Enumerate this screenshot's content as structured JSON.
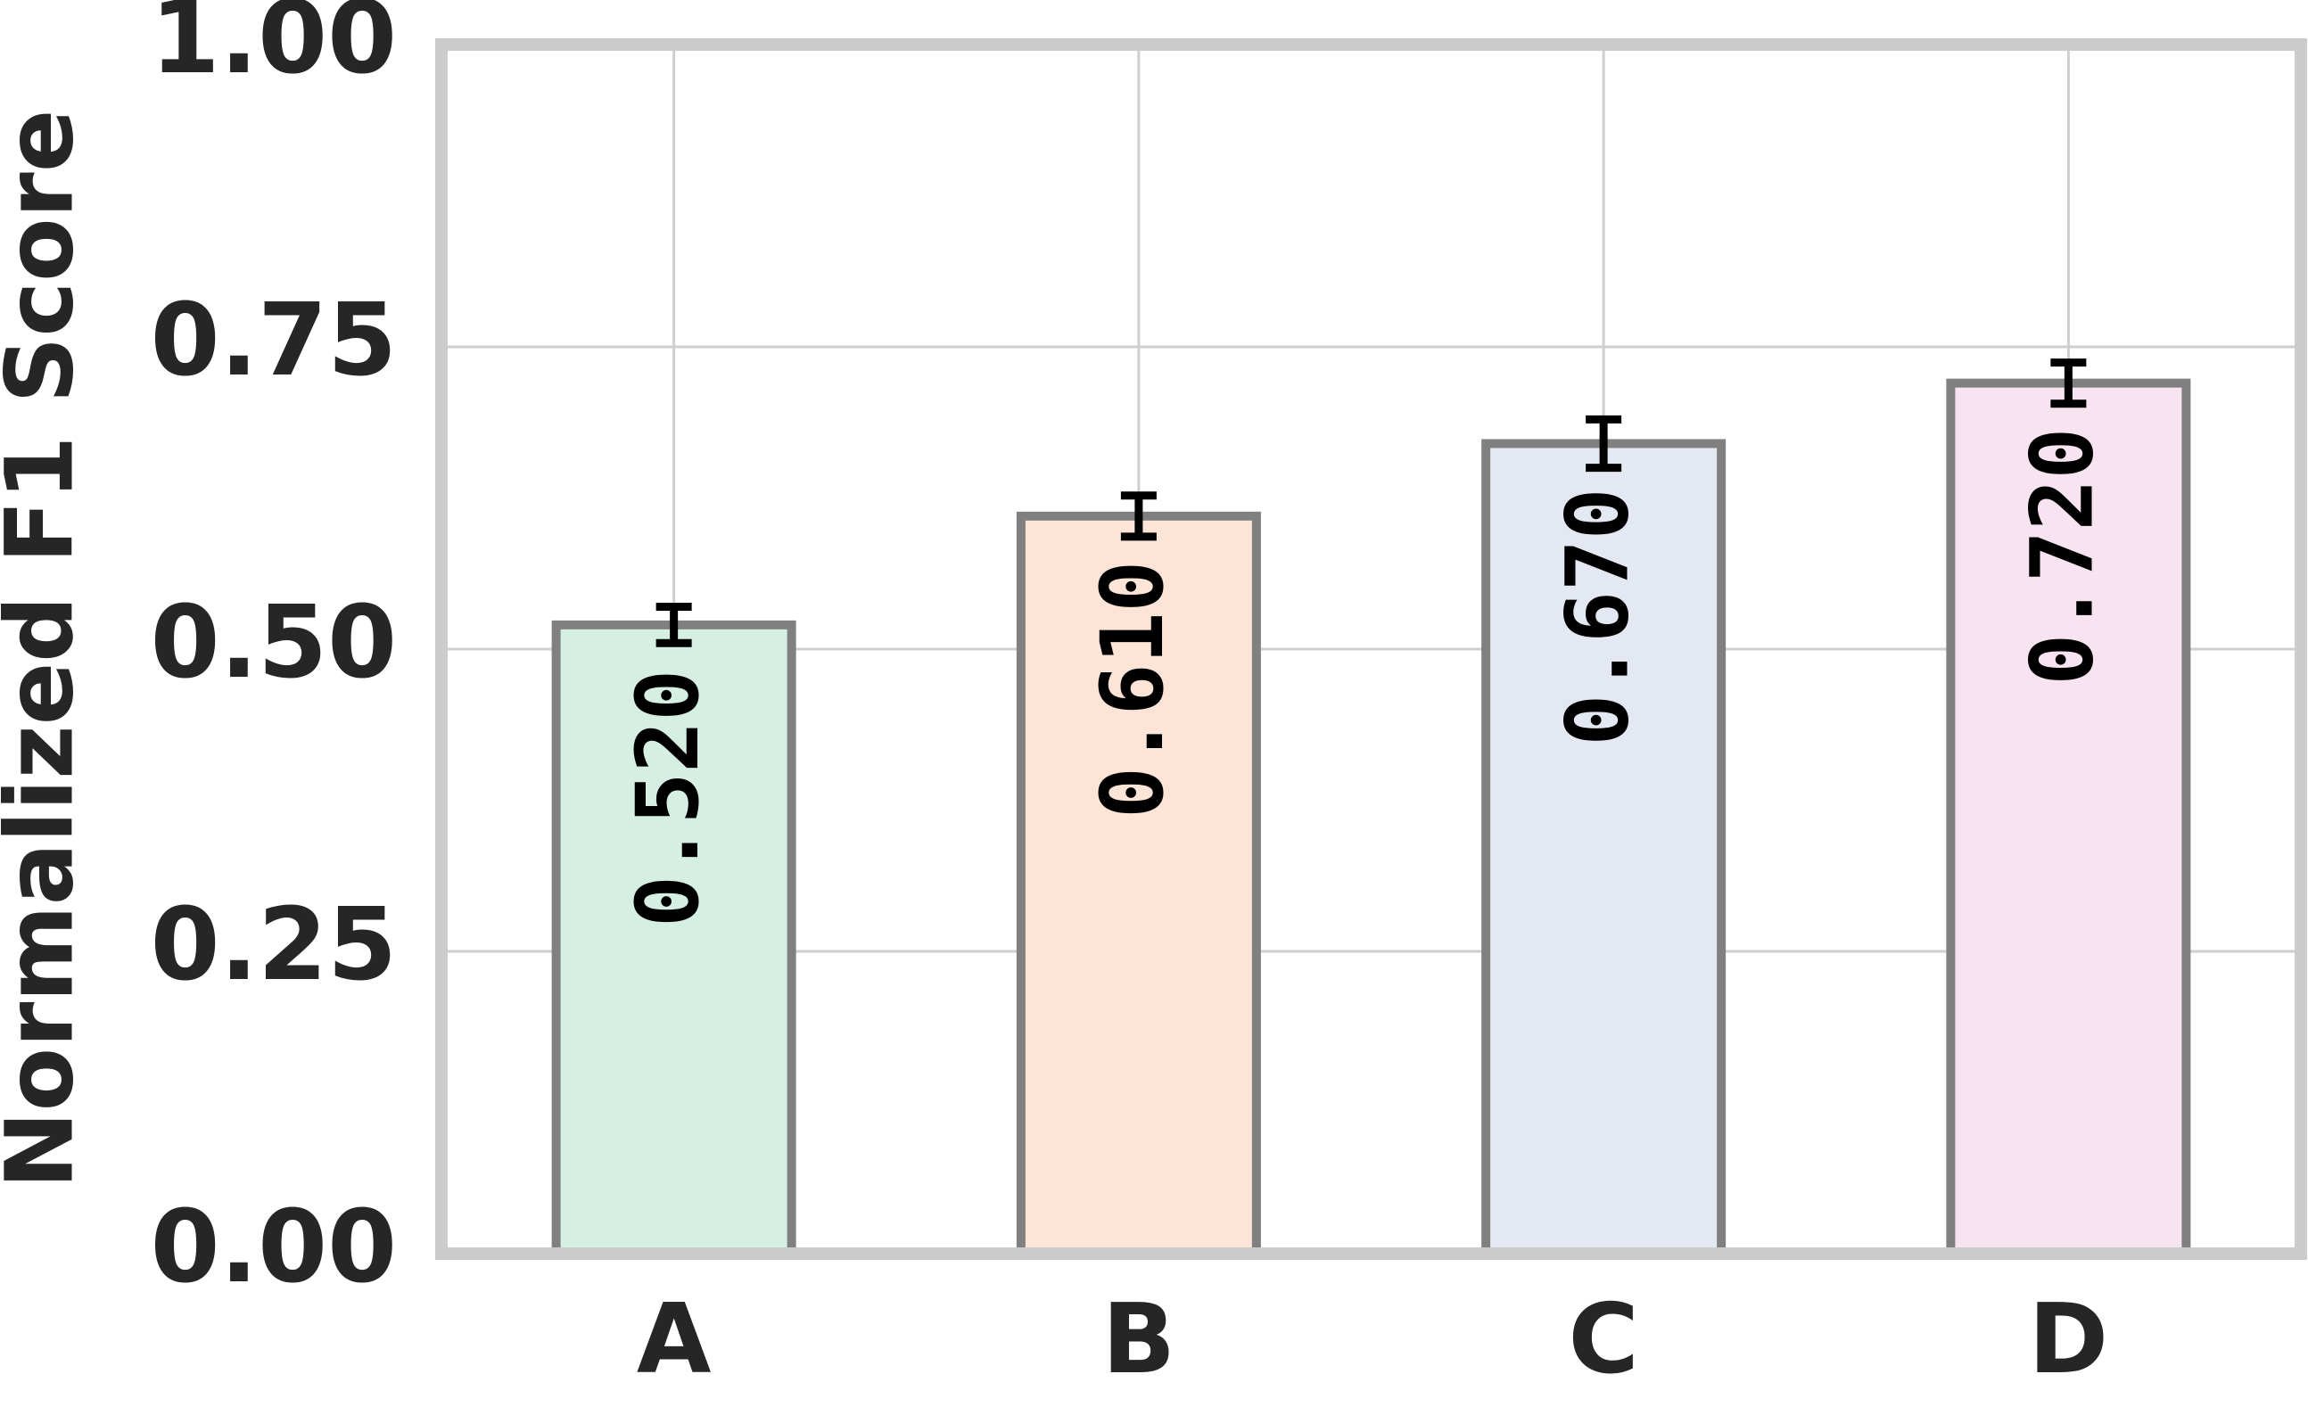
{
  "chart_data": {
    "type": "bar",
    "ylabel": "Normalized F1 Score",
    "categories": [
      "A",
      "B",
      "C",
      "D"
    ],
    "values": [
      0.52,
      0.61,
      0.67,
      0.72
    ],
    "value_labels": [
      "0.520",
      "0.610",
      "0.670",
      "0.720"
    ],
    "errors": [
      0.015,
      0.017,
      0.02,
      0.017
    ],
    "colors": [
      "#d6efe3",
      "#fce4d6",
      "#e4e8f3",
      "#f7e4f0"
    ],
    "ylim": [
      0,
      1
    ],
    "yticks": [
      {
        "value": 0,
        "label": "0.00"
      },
      {
        "value": 0.25,
        "label": "0.25"
      },
      {
        "value": 0.5,
        "label": "0.50"
      },
      {
        "value": 0.75,
        "label": "0.75"
      },
      {
        "value": 1,
        "label": "1.00"
      }
    ],
    "grid": true
  }
}
